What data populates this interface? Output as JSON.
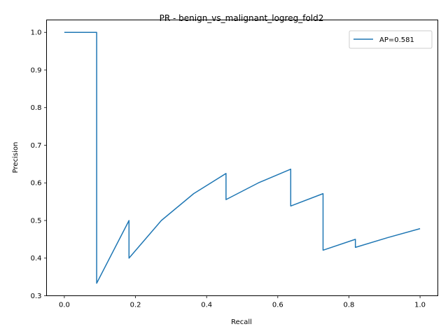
{
  "chart_data": {
    "type": "line",
    "title": "PR - benign_vs_malignant_logreg_fold2",
    "xlabel": "Recall",
    "ylabel": "Precision",
    "xlim": [
      -0.05,
      1.05
    ],
    "ylim": [
      0.3,
      1.033
    ],
    "xticks": [
      0.0,
      0.2,
      0.4,
      0.6,
      0.8,
      1.0
    ],
    "xtick_labels": [
      "0.0",
      "0.2",
      "0.4",
      "0.6",
      "0.8",
      "1.0"
    ],
    "yticks": [
      0.3,
      0.4,
      0.5,
      0.6,
      0.7,
      0.8,
      0.9,
      1.0
    ],
    "ytick_labels": [
      "0.3",
      "0.4",
      "0.5",
      "0.6",
      "0.7",
      "0.8",
      "0.9",
      "1.0"
    ],
    "grid": false,
    "legend_position": "top-right",
    "series": [
      {
        "name": "AP=0.581",
        "color": "#1f77b4",
        "x": [
          0.0,
          0.0909,
          0.0909,
          0.1818,
          0.1818,
          0.2727,
          0.3636,
          0.4545,
          0.4545,
          0.5455,
          0.6364,
          0.6364,
          0.7273,
          0.7273,
          0.8182,
          0.8182,
          0.9091,
          1.0
        ],
        "y": [
          1.0,
          1.0,
          0.3333,
          0.5,
          0.4,
          0.5,
          0.5714,
          0.625,
          0.5556,
          0.6,
          0.6364,
          0.5385,
          0.5714,
          0.4211,
          0.45,
          0.4286,
          0.4545,
          0.4783
        ]
      }
    ]
  }
}
